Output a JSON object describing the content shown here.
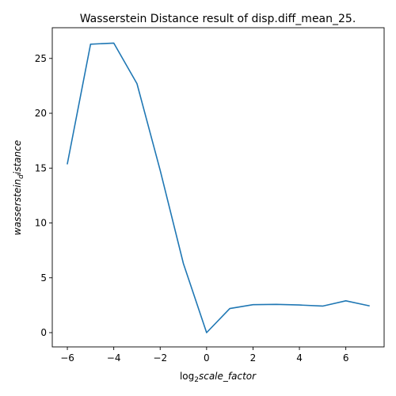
{
  "chart_data": {
    "type": "line",
    "title": "Wasserstein Distance result of disp.diff_mean_25.",
    "xlabel": {
      "prefix": "log",
      "subscript": "2",
      "rest": "scale_factor"
    },
    "ylabel": {
      "main": "wasserstein",
      "subscript": "d",
      "rest": "istance"
    },
    "xlim": [
      -6.65,
      7.65
    ],
    "ylim": [
      -1.3,
      27.8
    ],
    "x_ticks": [
      -6,
      -4,
      -2,
      0,
      2,
      4,
      6
    ],
    "x_tick_labels": [
      "−6",
      "−4",
      "−2",
      "0",
      "2",
      "4",
      "6"
    ],
    "y_ticks": [
      0,
      5,
      10,
      15,
      20,
      25
    ],
    "y_tick_labels": [
      "0",
      "5",
      "10",
      "15",
      "20",
      "25"
    ],
    "grid": false,
    "series": [
      {
        "color": "#1f77b4",
        "x": [
          -6,
          -5,
          -4,
          -3,
          -2,
          -1,
          0,
          1,
          2,
          3,
          4,
          5,
          6,
          7
        ],
        "y": [
          15.4,
          26.3,
          26.4,
          22.7,
          14.8,
          6.3,
          0.0,
          2.2,
          2.55,
          2.58,
          2.52,
          2.42,
          2.9,
          2.45
        ]
      }
    ]
  }
}
